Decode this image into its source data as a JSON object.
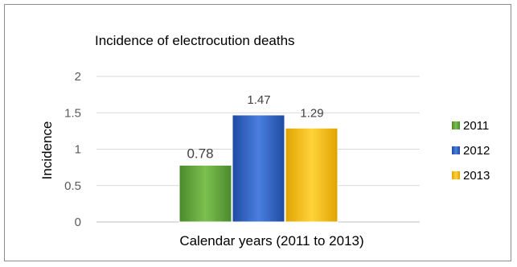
{
  "chart_data": {
    "type": "bar",
    "title": "Incidence  of electrocution deaths",
    "xlabel": "Calendar years (2011 to 2013)",
    "ylabel": "Incidence",
    "ylim": [
      0,
      2
    ],
    "yticks": [
      "0",
      "0.5",
      "1",
      "1.5",
      "2"
    ],
    "grid": true,
    "legend_position": "right",
    "series": [
      {
        "name": "2011",
        "values": [
          0.78
        ],
        "label": "0.78",
        "color": "#5a9e3a"
      },
      {
        "name": "2012",
        "values": [
          1.47
        ],
        "label": "1.47",
        "color": "#2a58b8"
      },
      {
        "name": "2013",
        "values": [
          1.29
        ],
        "label": "1.29",
        "color": "#f2b705"
      }
    ]
  }
}
